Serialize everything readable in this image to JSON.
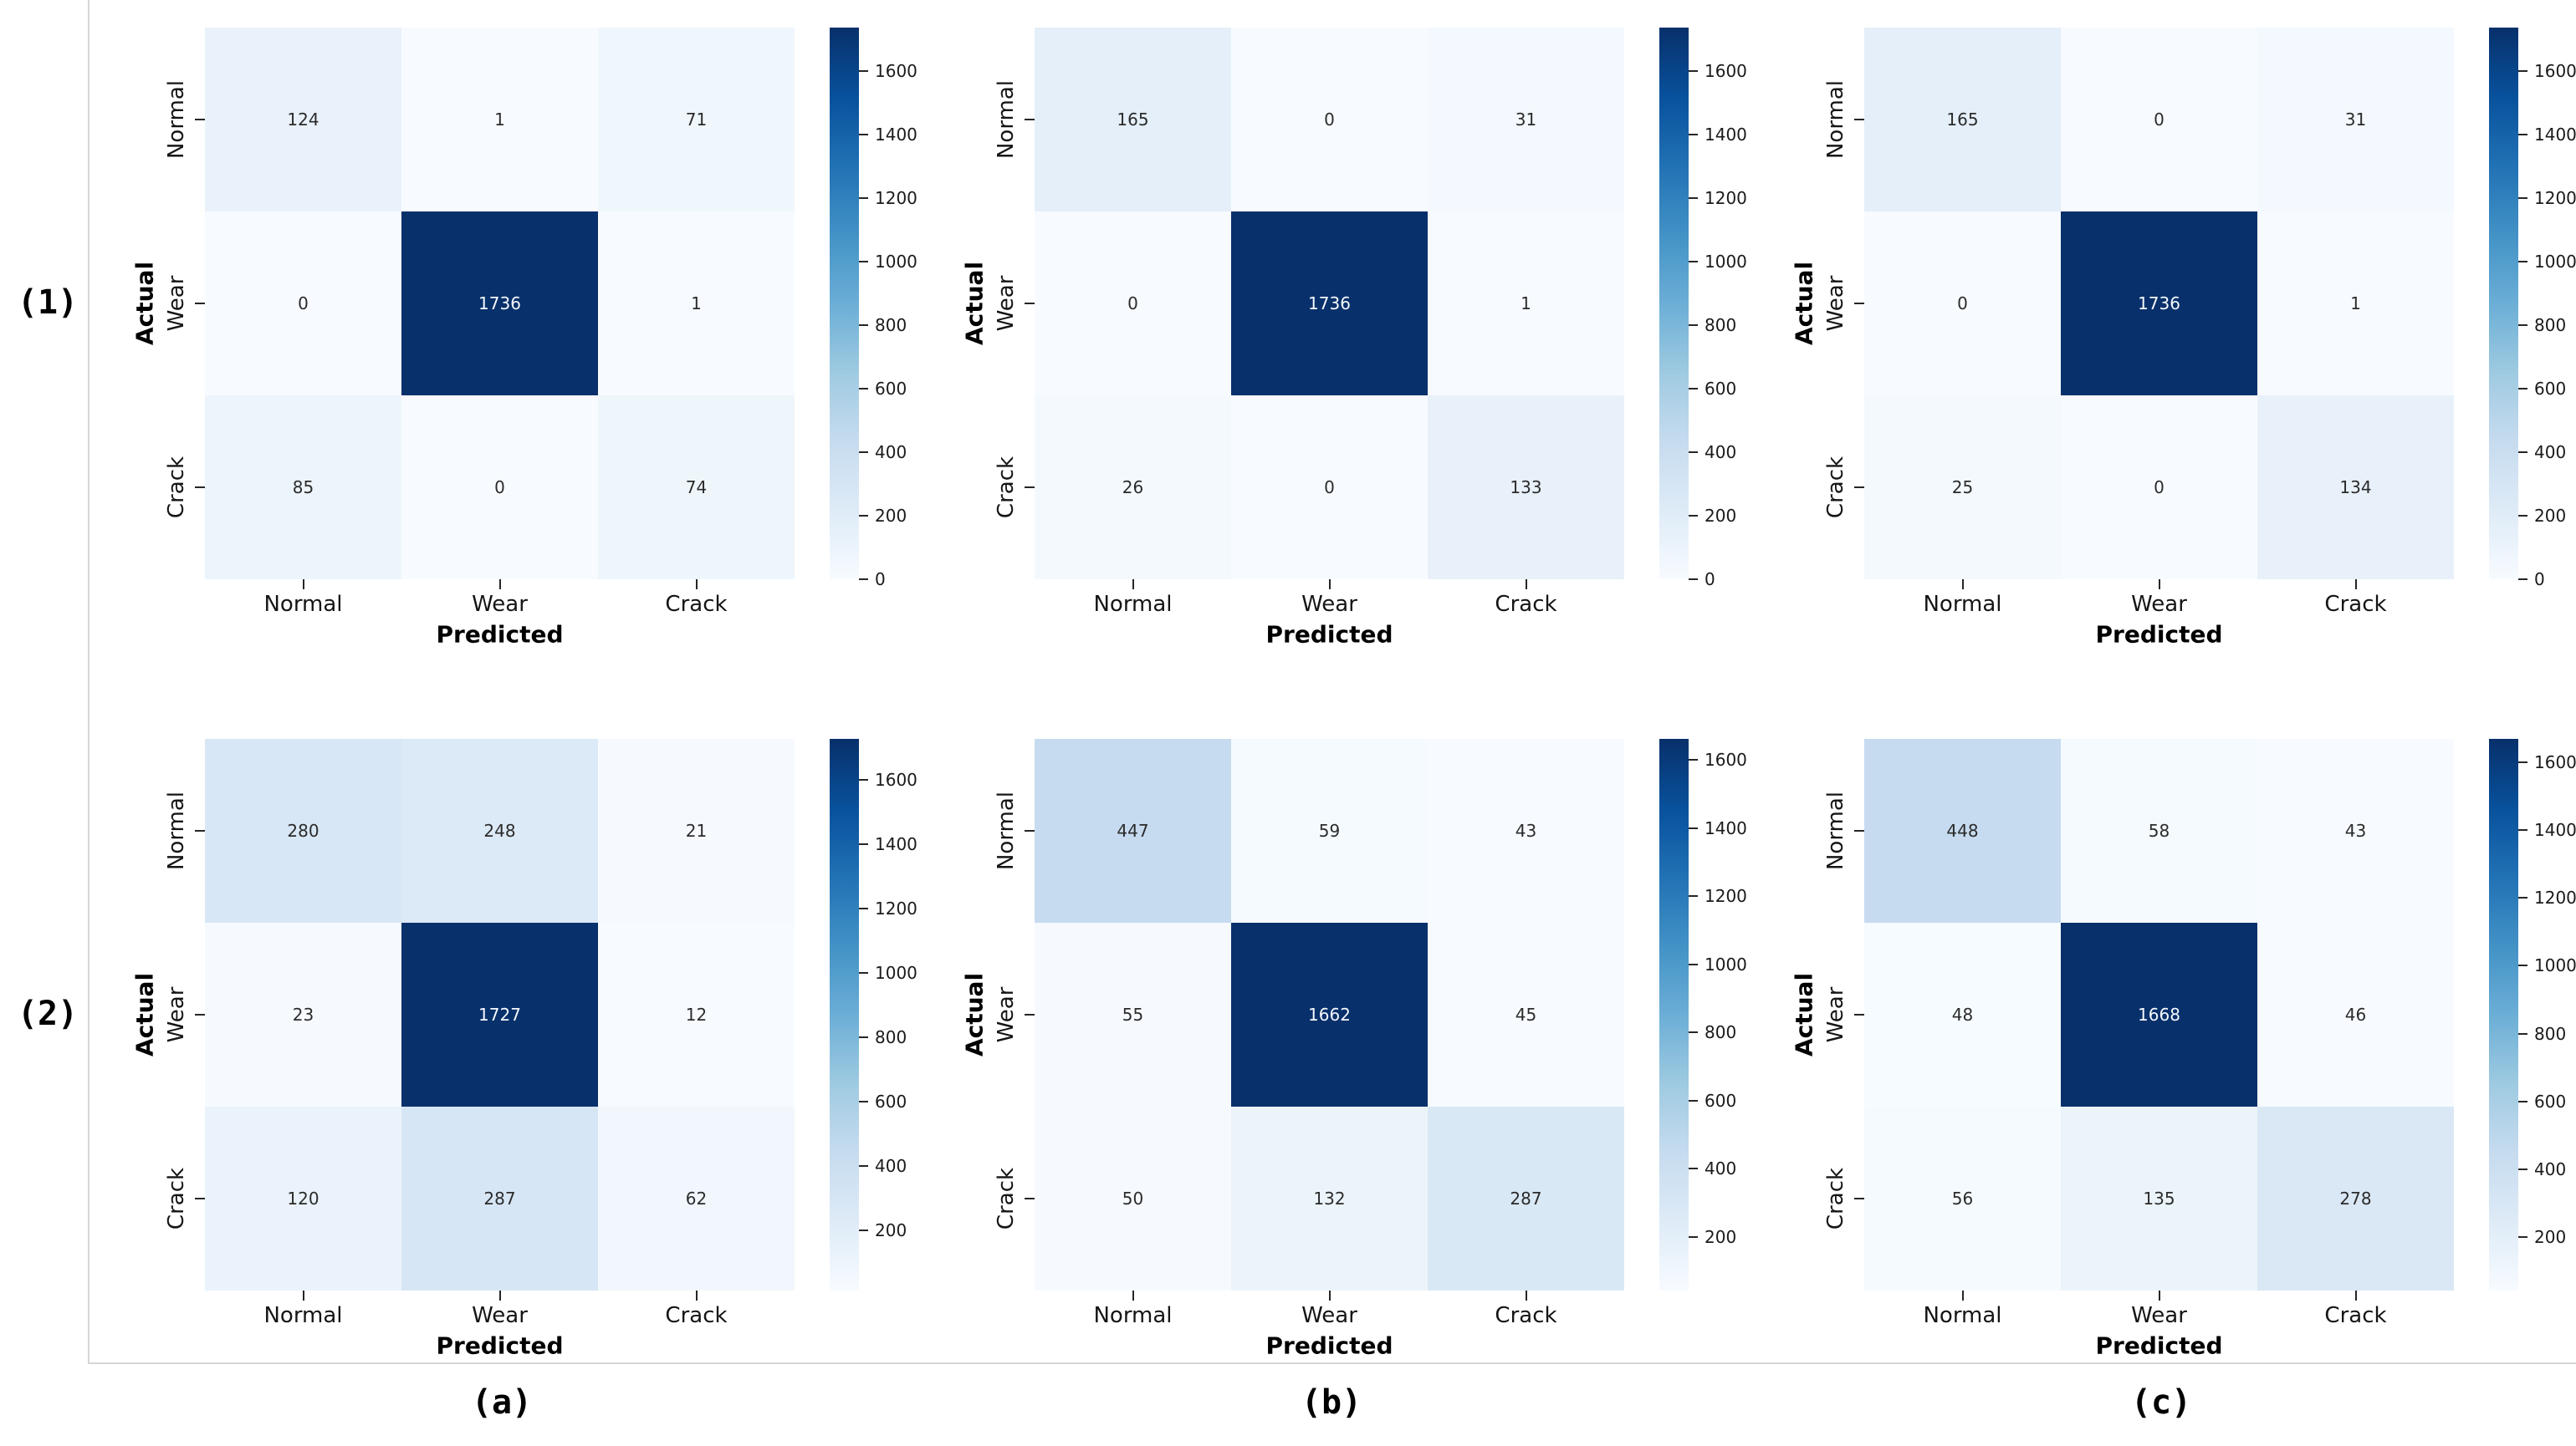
{
  "figure": {
    "description": "Grid of six confusion-matrix heatmaps (2 rows x 3 columns) with Blues colormap and per-plot colorbars",
    "row_labels": [
      "(1)",
      "(2)"
    ],
    "col_labels": [
      "(a)",
      "(b)",
      "(c)"
    ],
    "classes": [
      "Normal",
      "Wear",
      "Crack"
    ],
    "xlabel": "Predicted",
    "ylabel": "Actual"
  },
  "colors": {
    "background": "#ffffff",
    "border_line": "#d6d6d6",
    "cmap_name": "Blues",
    "cmap_stops": [
      "#f7fbff",
      "#deebf7",
      "#c6dbef",
      "#9ecae1",
      "#6baed6",
      "#4292c6",
      "#2171b5",
      "#08519c",
      "#08306b"
    ],
    "annot_dark": "#2b2b2b",
    "annot_light": "#f4f8fc",
    "tick_color": "#262626"
  },
  "chart_data": [
    {
      "type": "heatmap",
      "id": "1a",
      "panel_row": "(1)",
      "panel_col": "(a)",
      "x_categories": [
        "Normal",
        "Wear",
        "Crack"
      ],
      "y_categories": [
        "Normal",
        "Wear",
        "Crack"
      ],
      "xlabel": "Predicted",
      "ylabel": "Actual",
      "values": [
        [
          124,
          1,
          71
        ],
        [
          0,
          1736,
          1
        ],
        [
          85,
          0,
          74
        ]
      ],
      "vmin": 0,
      "vmax": 1736,
      "colorbar_ticks": [
        0,
        200,
        400,
        600,
        800,
        1000,
        1200,
        1400,
        1600
      ],
      "legend_position": "right",
      "grid": false
    },
    {
      "type": "heatmap",
      "id": "1b",
      "panel_row": "(1)",
      "panel_col": "(b)",
      "x_categories": [
        "Normal",
        "Wear",
        "Crack"
      ],
      "y_categories": [
        "Normal",
        "Wear",
        "Crack"
      ],
      "xlabel": "Predicted",
      "ylabel": "Actual",
      "values": [
        [
          165,
          0,
          31
        ],
        [
          0,
          1736,
          1
        ],
        [
          26,
          0,
          133
        ]
      ],
      "vmin": 0,
      "vmax": 1736,
      "colorbar_ticks": [
        0,
        200,
        400,
        600,
        800,
        1000,
        1200,
        1400,
        1600
      ],
      "legend_position": "right",
      "grid": false
    },
    {
      "type": "heatmap",
      "id": "1c",
      "panel_row": "(1)",
      "panel_col": "(c)",
      "x_categories": [
        "Normal",
        "Wear",
        "Crack"
      ],
      "y_categories": [
        "Normal",
        "Wear",
        "Crack"
      ],
      "xlabel": "Predicted",
      "ylabel": "Actual",
      "values": [
        [
          165,
          0,
          31
        ],
        [
          0,
          1736,
          1
        ],
        [
          25,
          0,
          134
        ]
      ],
      "vmin": 0,
      "vmax": 1736,
      "colorbar_ticks": [
        0,
        200,
        400,
        600,
        800,
        1000,
        1200,
        1400,
        1600
      ],
      "legend_position": "right",
      "grid": false
    },
    {
      "type": "heatmap",
      "id": "2a",
      "panel_row": "(2)",
      "panel_col": "(a)",
      "x_categories": [
        "Normal",
        "Wear",
        "Crack"
      ],
      "y_categories": [
        "Normal",
        "Wear",
        "Crack"
      ],
      "xlabel": "Predicted",
      "ylabel": "Actual",
      "values": [
        [
          280,
          248,
          21
        ],
        [
          23,
          1727,
          12
        ],
        [
          120,
          287,
          62
        ]
      ],
      "vmin": 12,
      "vmax": 1727,
      "colorbar_ticks": [
        200,
        400,
        600,
        800,
        1000,
        1200,
        1400,
        1600
      ],
      "legend_position": "right",
      "grid": false
    },
    {
      "type": "heatmap",
      "id": "2b",
      "panel_row": "(2)",
      "panel_col": "(b)",
      "x_categories": [
        "Normal",
        "Wear",
        "Crack"
      ],
      "y_categories": [
        "Normal",
        "Wear",
        "Crack"
      ],
      "xlabel": "Predicted",
      "ylabel": "Actual",
      "values": [
        [
          447,
          59,
          43
        ],
        [
          55,
          1662,
          45
        ],
        [
          50,
          132,
          287
        ]
      ],
      "vmin": 43,
      "vmax": 1662,
      "colorbar_ticks": [
        200,
        400,
        600,
        800,
        1000,
        1200,
        1400,
        1600
      ],
      "legend_position": "right",
      "grid": false
    },
    {
      "type": "heatmap",
      "id": "2c",
      "panel_row": "(2)",
      "panel_col": "(c)",
      "x_categories": [
        "Normal",
        "Wear",
        "Crack"
      ],
      "y_categories": [
        "Normal",
        "Wear",
        "Crack"
      ],
      "xlabel": "Predicted",
      "ylabel": "Actual",
      "values": [
        [
          448,
          58,
          43
        ],
        [
          48,
          1668,
          46
        ],
        [
          56,
          135,
          278
        ]
      ],
      "vmin": 43,
      "vmax": 1668,
      "colorbar_ticks": [
        200,
        400,
        600,
        800,
        1000,
        1200,
        1400,
        1600
      ],
      "legend_position": "right",
      "grid": false
    }
  ]
}
